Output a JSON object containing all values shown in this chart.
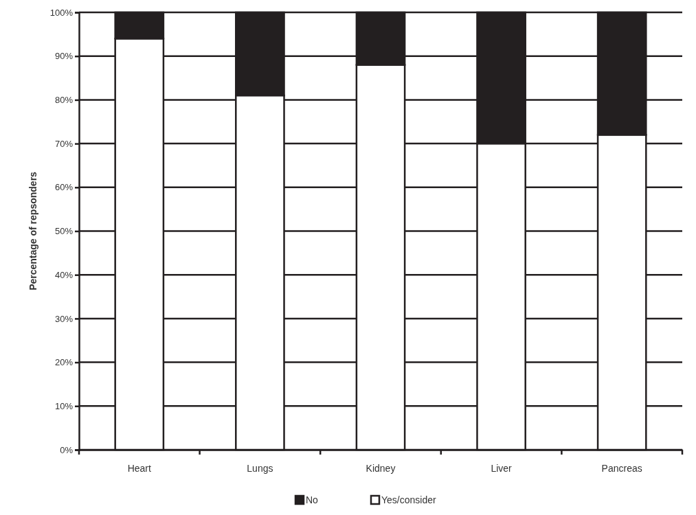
{
  "chart_data": {
    "type": "bar",
    "stacked": true,
    "ylabel": "Percentage of repsonders",
    "categories": [
      "Heart",
      "Lungs",
      "Kidney",
      "Liver",
      "Pancreas"
    ],
    "series": [
      {
        "name": "Yes/consider",
        "color": "#ffffff",
        "values": [
          94,
          81,
          88,
          70,
          72
        ]
      },
      {
        "name": "No",
        "color": "#231f20",
        "values": [
          6,
          19,
          12,
          30,
          28
        ]
      }
    ],
    "ylim": [
      0,
      100
    ],
    "yticks": [
      {
        "value": 0,
        "label": "0%"
      },
      {
        "value": 10,
        "label": "10%"
      },
      {
        "value": 20,
        "label": "20%"
      },
      {
        "value": 30,
        "label": "30%"
      },
      {
        "value": 40,
        "label": "40%"
      },
      {
        "value": 50,
        "label": "50%"
      },
      {
        "value": 60,
        "label": "60%"
      },
      {
        "value": 70,
        "label": "70%"
      },
      {
        "value": 80,
        "label": "80%"
      },
      {
        "value": 90,
        "label": "90%"
      },
      {
        "value": 100,
        "label": "100%"
      }
    ],
    "grid": "y",
    "legend": "bottom"
  }
}
